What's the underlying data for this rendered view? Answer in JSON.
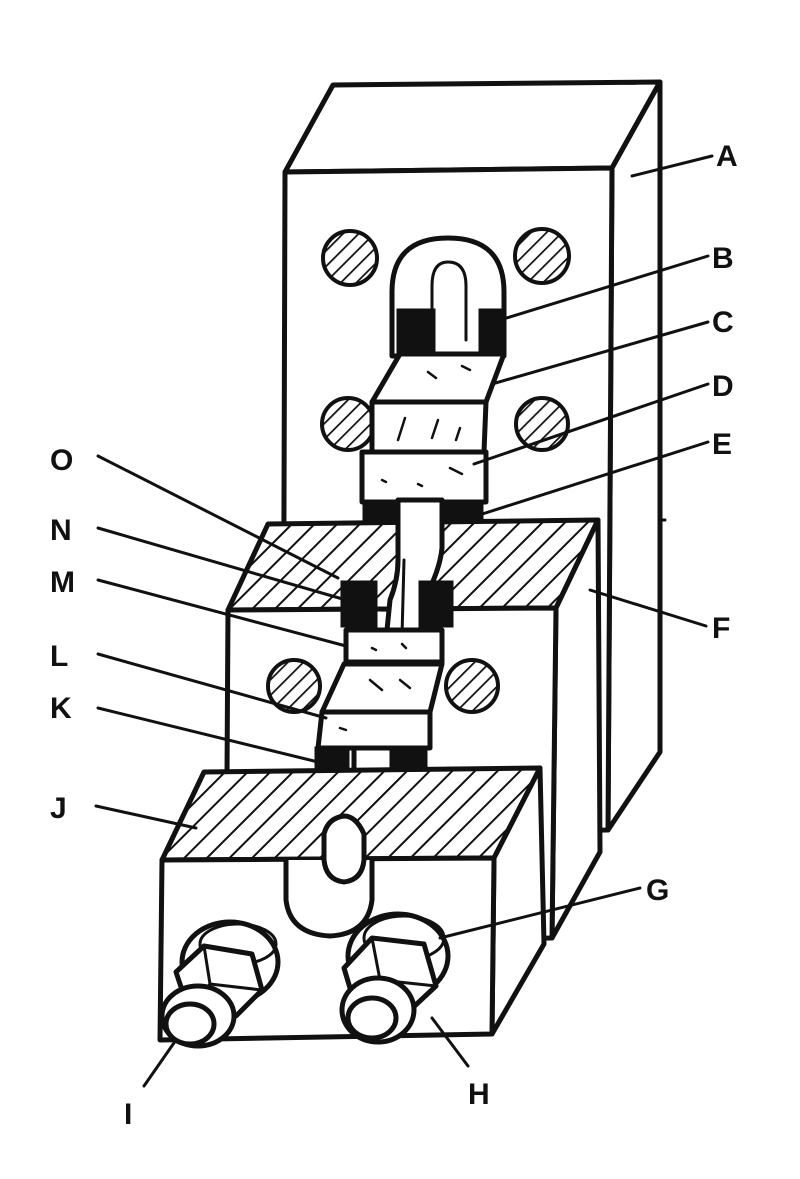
{
  "figure": {
    "ink_color": "#111111",
    "background_color": "#ffffff",
    "labels": [
      {
        "id": "A",
        "text": "A"
      },
      {
        "id": "B",
        "text": "B"
      },
      {
        "id": "C",
        "text": "C"
      },
      {
        "id": "D",
        "text": "D"
      },
      {
        "id": "E",
        "text": "E"
      },
      {
        "id": "F",
        "text": "F"
      },
      {
        "id": "G",
        "text": "G"
      },
      {
        "id": "H",
        "text": "H"
      },
      {
        "id": "I",
        "text": "I"
      },
      {
        "id": "J",
        "text": "J"
      },
      {
        "id": "K",
        "text": "K"
      },
      {
        "id": "L",
        "text": "L"
      },
      {
        "id": "M",
        "text": "M"
      },
      {
        "id": "N",
        "text": "N"
      },
      {
        "id": "O",
        "text": "O"
      }
    ]
  }
}
